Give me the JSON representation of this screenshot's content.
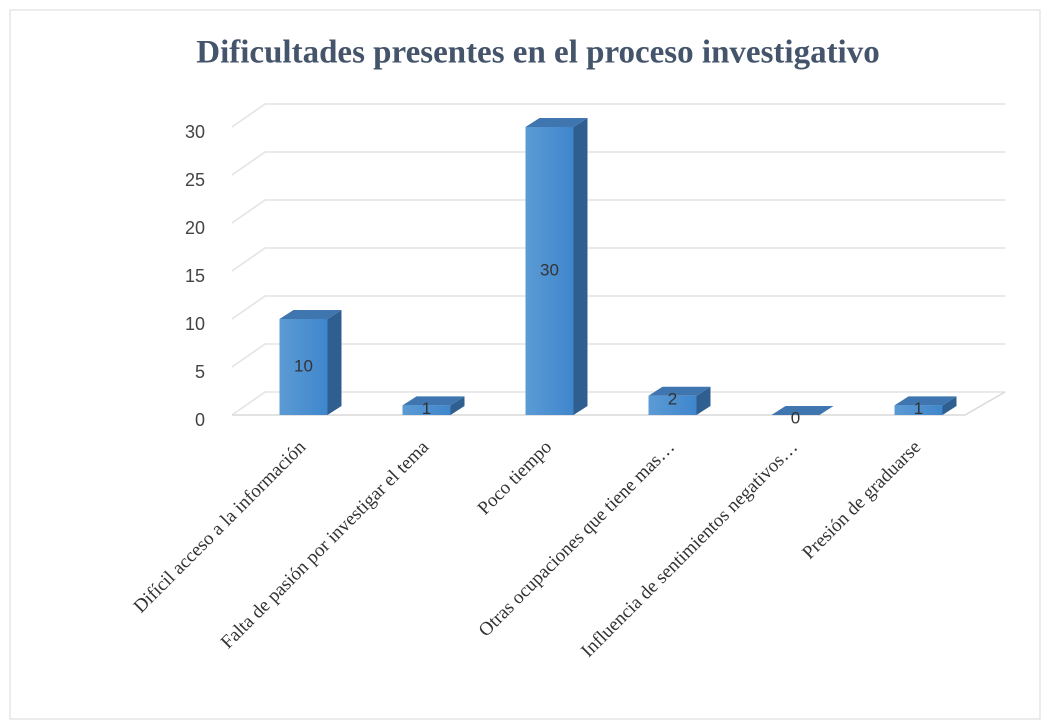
{
  "chart_data": {
    "type": "bar",
    "title": "Dificultades presentes en el proceso investigativo",
    "categories": [
      "Difícil acceso a la información",
      "Falta de pasión por investigar el tema",
      "Poco tiempo",
      "Otras ocupaciones que tiene mas…",
      "Influencia de sentimientos negativos…",
      "Presión de graduarse"
    ],
    "values": [
      10,
      1,
      30,
      2,
      0,
      1
    ],
    "color": "#4a8fd4",
    "ylim": [
      0,
      30
    ],
    "yticks": [
      0,
      5,
      10,
      15,
      20,
      25,
      30
    ],
    "grid": true
  }
}
